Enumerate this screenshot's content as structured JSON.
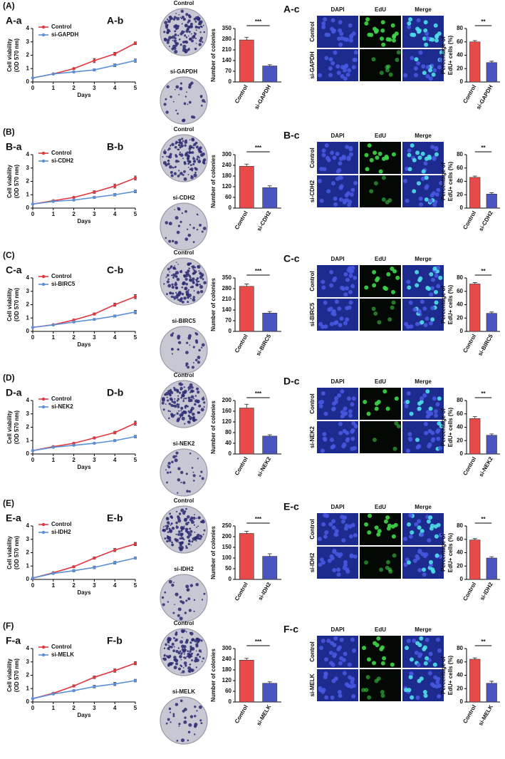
{
  "rows": [
    {
      "label": "(A)",
      "panels": [
        "A-a",
        "A-b",
        "A-c"
      ],
      "colony_labels": [
        "Control",
        "si-GAPDH"
      ],
      "edu_columns": [
        "DAPI",
        "EdU",
        "Merge"
      ],
      "edu_rows": [
        "Control",
        "si-GAPDH"
      ]
    },
    {
      "label": "(B)",
      "panels": [
        "B-a",
        "B-b",
        "B-c"
      ],
      "colony_labels": [
        "Control",
        "si-CDH2"
      ],
      "edu_columns": [
        "DAPI",
        "EdU",
        "Merge"
      ],
      "edu_rows": [
        "Control",
        "si-CDH2"
      ]
    },
    {
      "label": "(C)",
      "panels": [
        "C-a",
        "C-b",
        "C-c"
      ],
      "colony_labels": [
        "Control",
        "si-BIRC5"
      ],
      "edu_columns": [
        "DAPI",
        "EdU",
        "Merge"
      ],
      "edu_rows": [
        "Control",
        "si-BIRC5"
      ]
    },
    {
      "label": "(D)",
      "panels": [
        "D-a",
        "D-b",
        "D-c"
      ],
      "colony_labels": [
        "Control",
        "si-NEK2"
      ],
      "edu_columns": [
        "DAPI",
        "EdU",
        "Merge"
      ],
      "edu_rows": [
        "Control",
        "si-NEK2"
      ]
    },
    {
      "label": "(E)",
      "panels": [
        "E-a",
        "E-b",
        "E-c"
      ],
      "colony_labels": [
        "Control",
        "si-IDH2"
      ],
      "edu_columns": [
        "DAPI",
        "EdU",
        "Merge"
      ],
      "edu_rows": [
        "Control",
        "si-IDH2"
      ]
    },
    {
      "label": "(F)",
      "panels": [
        "F-a",
        "F-b",
        "F-c"
      ],
      "colony_labels": [
        "Control",
        "si-MELK"
      ],
      "edu_columns": [
        "DAPI",
        "EdU",
        "Merge"
      ],
      "edu_rows": [
        "Control",
        "si-MELK"
      ]
    }
  ],
  "chart_data": [
    {
      "type": "line",
      "x": [
        0,
        1,
        2,
        3,
        4,
        5
      ],
      "xlabel": "Days",
      "ylabel": [
        "Cell viability",
        "(OD 570 nm)"
      ],
      "xlim": [
        0,
        5
      ],
      "xticks": [
        0,
        1,
        2,
        3,
        4,
        5
      ],
      "ylim": [
        0,
        4
      ],
      "yticks": [
        0,
        1,
        2,
        3,
        4
      ],
      "series": [
        {
          "name": "Control",
          "color": "#e0383e",
          "values": [
            0.3,
            0.6,
            1.0,
            1.6,
            2.1,
            2.9
          ],
          "errors": [
            0.02,
            0.03,
            0.05,
            0.15,
            0.12,
            0.1
          ]
        },
        {
          "name": "si-GAPDH",
          "color": "#5b8fd6",
          "values": [
            0.3,
            0.6,
            0.75,
            0.9,
            1.25,
            1.6
          ],
          "errors": [
            0.02,
            0.03,
            0.05,
            0.08,
            0.1,
            0.12
          ]
        }
      ]
    },
    {
      "type": "bar",
      "ylabel": [
        "Number of colonies"
      ],
      "categories": [
        "Control",
        "si-GAPDH"
      ],
      "values": [
        275,
        105
      ],
      "errors": [
        18,
        8
      ],
      "colors": [
        "#e84a4a",
        "#4b55c0"
      ],
      "ylim": [
        0,
        350
      ],
      "yticks": [
        0,
        70,
        140,
        210,
        280,
        350
      ],
      "significance": "***"
    },
    {
      "type": "bar",
      "ylabel": [
        "Percentage of",
        "EdU+ cells (%)"
      ],
      "categories": [
        "Control",
        "si-GAPDH"
      ],
      "values": [
        60,
        29
      ],
      "errors": [
        2,
        2
      ],
      "colors": [
        "#e84a4a",
        "#4b55c0"
      ],
      "ylim": [
        0,
        80
      ],
      "yticks": [
        0,
        20,
        40,
        60,
        80
      ],
      "significance": "**"
    },
    {
      "type": "line",
      "x": [
        0,
        1,
        2,
        3,
        4,
        5
      ],
      "xlabel": "Days",
      "ylabel": [
        "Cell viability",
        "(OD 570 nm)"
      ],
      "xlim": [
        0,
        5
      ],
      "xticks": [
        0,
        1,
        2,
        3,
        4,
        5
      ],
      "ylim": [
        0,
        4
      ],
      "yticks": [
        0,
        1,
        2,
        3,
        4
      ],
      "series": [
        {
          "name": "Control",
          "color": "#e0383e",
          "values": [
            0.3,
            0.55,
            0.8,
            1.2,
            1.65,
            2.25
          ],
          "errors": [
            0.02,
            0.03,
            0.05,
            0.1,
            0.15,
            0.15
          ]
        },
        {
          "name": "si-CDH2",
          "color": "#5b8fd6",
          "values": [
            0.3,
            0.5,
            0.6,
            0.8,
            1.0,
            1.25
          ],
          "errors": [
            0.02,
            0.03,
            0.04,
            0.07,
            0.1,
            0.1
          ]
        }
      ]
    },
    {
      "type": "bar",
      "ylabel": [
        "Number of colonies"
      ],
      "categories": [
        "Control",
        "si-CDH2"
      ],
      "values": [
        235,
        115
      ],
      "errors": [
        12,
        10
      ],
      "colors": [
        "#e84a4a",
        "#4b55c0"
      ],
      "ylim": [
        0,
        300
      ],
      "yticks": [
        0,
        60,
        120,
        180,
        240,
        300
      ],
      "significance": "***"
    },
    {
      "type": "bar",
      "ylabel": [
        "Percentage of",
        "EdU+ cells (%)"
      ],
      "categories": [
        "Control",
        "si-CDH2"
      ],
      "values": [
        46,
        21
      ],
      "errors": [
        2,
        2
      ],
      "colors": [
        "#e84a4a",
        "#4b55c0"
      ],
      "ylim": [
        0,
        80
      ],
      "yticks": [
        0,
        20,
        40,
        60,
        80
      ],
      "significance": "**"
    },
    {
      "type": "line",
      "x": [
        0,
        1,
        2,
        3,
        4,
        5
      ],
      "xlabel": "Days",
      "ylabel": [
        "Cell viability",
        "(OD 570 nm)"
      ],
      "xlim": [
        0,
        5
      ],
      "xticks": [
        0,
        1,
        2,
        3,
        4,
        5
      ],
      "ylim": [
        0,
        4
      ],
      "yticks": [
        0,
        1,
        2,
        3,
        4
      ],
      "series": [
        {
          "name": "Control",
          "color": "#e0383e",
          "values": [
            0.3,
            0.5,
            0.85,
            1.3,
            2.0,
            2.6
          ],
          "errors": [
            0.02,
            0.03,
            0.05,
            0.08,
            0.12,
            0.15
          ]
        },
        {
          "name": "si-BIRC5",
          "color": "#5b8fd6",
          "values": [
            0.3,
            0.48,
            0.7,
            0.9,
            1.15,
            1.45
          ],
          "errors": [
            0.02,
            0.03,
            0.04,
            0.06,
            0.08,
            0.12
          ]
        }
      ]
    },
    {
      "type": "bar",
      "ylabel": [
        "Number of colonies"
      ],
      "categories": [
        "Control",
        "si-BIRC5"
      ],
      "values": [
        295,
        120
      ],
      "errors": [
        15,
        10
      ],
      "colors": [
        "#e84a4a",
        "#4b55c0"
      ],
      "ylim": [
        0,
        350
      ],
      "yticks": [
        0,
        70,
        140,
        210,
        280,
        350
      ],
      "significance": "***"
    },
    {
      "type": "bar",
      "ylabel": [
        "Percentage of",
        "EdU+ cells (%)"
      ],
      "categories": [
        "Control",
        "si-BIRC5"
      ],
      "values": [
        71,
        27
      ],
      "errors": [
        2,
        2
      ],
      "colors": [
        "#e84a4a",
        "#4b55c0"
      ],
      "ylim": [
        0,
        80
      ],
      "yticks": [
        0,
        20,
        40,
        60,
        80
      ],
      "significance": "**"
    },
    {
      "type": "line",
      "x": [
        0,
        1,
        2,
        3,
        4,
        5
      ],
      "xlabel": "Days",
      "ylabel": [
        "Cell viability",
        "(OD 570 nm)"
      ],
      "xlim": [
        0,
        5
      ],
      "xticks": [
        0,
        1,
        2,
        3,
        4,
        5
      ],
      "ylim": [
        0,
        4
      ],
      "yticks": [
        0,
        1,
        2,
        3,
        4
      ],
      "series": [
        {
          "name": "Control",
          "color": "#e0383e",
          "values": [
            0.25,
            0.55,
            0.8,
            1.2,
            1.6,
            2.3
          ],
          "errors": [
            0.02,
            0.03,
            0.05,
            0.08,
            0.1,
            0.15
          ]
        },
        {
          "name": "si-NEK2",
          "color": "#5b8fd6",
          "values": [
            0.25,
            0.5,
            0.65,
            0.8,
            1.0,
            1.3
          ],
          "errors": [
            0.02,
            0.03,
            0.04,
            0.06,
            0.08,
            0.1
          ]
        }
      ]
    },
    {
      "type": "bar",
      "ylabel": [
        "Number of colonies"
      ],
      "categories": [
        "Control",
        "si-NEK2"
      ],
      "values": [
        172,
        67
      ],
      "errors": [
        14,
        5
      ],
      "colors": [
        "#e84a4a",
        "#4b55c0"
      ],
      "ylim": [
        0,
        200
      ],
      "yticks": [
        0,
        40,
        80,
        120,
        160,
        200
      ],
      "significance": "***"
    },
    {
      "type": "bar",
      "ylabel": [
        "Percentage of",
        "EdU+ cells (%)"
      ],
      "categories": [
        "Control",
        "si-NEK2"
      ],
      "values": [
        53,
        28
      ],
      "errors": [
        3,
        2
      ],
      "colors": [
        "#e84a4a",
        "#4b55c0"
      ],
      "ylim": [
        0,
        80
      ],
      "yticks": [
        0,
        20,
        40,
        60,
        80
      ],
      "significance": "**"
    },
    {
      "type": "line",
      "x": [
        0,
        1,
        2,
        3,
        4,
        5
      ],
      "xlabel": "Days",
      "ylabel": [
        "Cell viability",
        "(OD 570 nm)"
      ],
      "xlim": [
        0,
        5
      ],
      "xticks": [
        0,
        1,
        2,
        3,
        4,
        5
      ],
      "ylim": [
        0,
        4
      ],
      "yticks": [
        0,
        1,
        2,
        3,
        4
      ],
      "series": [
        {
          "name": "Control",
          "color": "#e0383e",
          "values": [
            0.1,
            0.5,
            0.95,
            1.6,
            2.2,
            2.65
          ],
          "errors": [
            0.02,
            0.03,
            0.06,
            0.08,
            0.12,
            0.12
          ]
        },
        {
          "name": "si-IDH2",
          "color": "#5b8fd6",
          "values": [
            0.1,
            0.45,
            0.65,
            0.9,
            1.25,
            1.6
          ],
          "errors": [
            0.02,
            0.03,
            0.08,
            0.1,
            0.1,
            0.08
          ]
        }
      ]
    },
    {
      "type": "bar",
      "ylabel": [
        "Number of colonies"
      ],
      "categories": [
        "Control",
        "si-IDH2"
      ],
      "values": [
        215,
        108
      ],
      "errors": [
        10,
        12
      ],
      "colors": [
        "#e84a4a",
        "#4b55c0"
      ],
      "ylim": [
        0,
        250
      ],
      "yticks": [
        0,
        50,
        100,
        150,
        200,
        250
      ],
      "significance": "***"
    },
    {
      "type": "bar",
      "ylabel": [
        "Percentage of",
        "EdU+ cells (%)"
      ],
      "categories": [
        "Control",
        "si-IDH2"
      ],
      "values": [
        59,
        32
      ],
      "errors": [
        2,
        2
      ],
      "colors": [
        "#e84a4a",
        "#4b55c0"
      ],
      "ylim": [
        0,
        80
      ],
      "yticks": [
        0,
        20,
        40,
        60,
        80
      ],
      "significance": "**"
    },
    {
      "type": "line",
      "x": [
        0,
        1,
        2,
        3,
        4,
        5
      ],
      "xlabel": "Days",
      "ylabel": [
        "Cell viability",
        "(OD 570 nm)"
      ],
      "xlim": [
        0,
        5
      ],
      "xticks": [
        0,
        1,
        2,
        3,
        4,
        5
      ],
      "ylim": [
        0,
        4
      ],
      "yticks": [
        0,
        1,
        2,
        3,
        4
      ],
      "series": [
        {
          "name": "Control",
          "color": "#e0383e",
          "values": [
            0.25,
            0.65,
            1.2,
            1.85,
            2.35,
            2.9
          ],
          "errors": [
            0.02,
            0.04,
            0.08,
            0.1,
            0.12,
            0.12
          ]
        },
        {
          "name": "si-MELK",
          "color": "#5b8fd6",
          "values": [
            0.25,
            0.6,
            0.85,
            1.15,
            1.35,
            1.6
          ],
          "errors": [
            0.02,
            0.03,
            0.06,
            0.1,
            0.12,
            0.1
          ]
        }
      ]
    },
    {
      "type": "bar",
      "ylabel": [
        "Number of colonies"
      ],
      "categories": [
        "Control",
        "si-MELK"
      ],
      "values": [
        235,
        105
      ],
      "errors": [
        10,
        8
      ],
      "colors": [
        "#e84a4a",
        "#4b55c0"
      ],
      "ylim": [
        0,
        300
      ],
      "yticks": [
        0,
        60,
        120,
        180,
        240,
        300
      ],
      "significance": "***"
    },
    {
      "type": "bar",
      "ylabel": [
        "Percentage of",
        "EdU+ cells (%)"
      ],
      "categories": [
        "Control",
        "si-MELK"
      ],
      "values": [
        64,
        28
      ],
      "errors": [
        2,
        3
      ],
      "colors": [
        "#e84a4a",
        "#4b55c0"
      ],
      "ylim": [
        0,
        80
      ],
      "yticks": [
        0,
        20,
        40,
        60,
        80
      ],
      "significance": "**"
    }
  ]
}
